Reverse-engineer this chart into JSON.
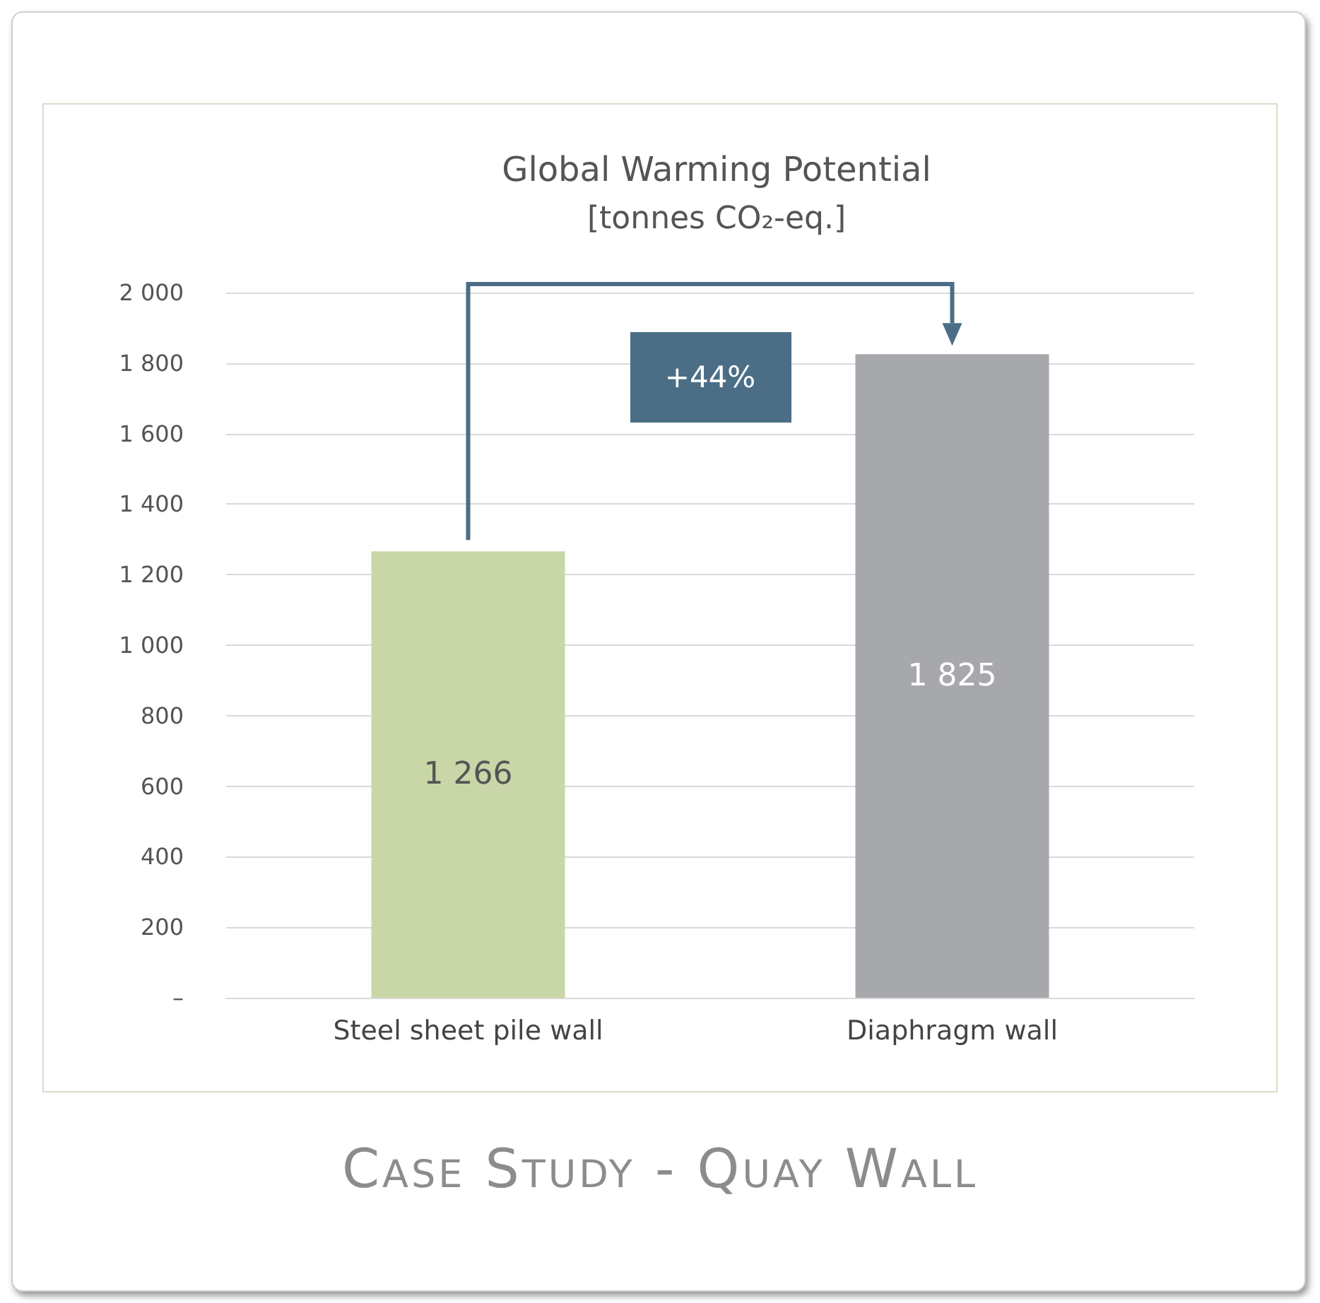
{
  "chart_data": {
    "type": "bar",
    "title": "Global Warming Potential",
    "subtitle": "[tonnes CO₂-eq.]",
    "categories": [
      "Steel sheet pile wall",
      "Diaphragm wall"
    ],
    "values": [
      1266,
      1825
    ],
    "colors": [
      "#c9d6a7",
      "#a7a8ab"
    ],
    "value_labels": [
      "1 266",
      "1 825"
    ],
    "ylim": [
      0,
      2000
    ],
    "yticks": [
      {
        "value": 0,
        "label": "–"
      },
      {
        "value": 200,
        "label": "200"
      },
      {
        "value": 400,
        "label": "400"
      },
      {
        "value": 600,
        "label": "600"
      },
      {
        "value": 800,
        "label": "800"
      },
      {
        "value": 1000,
        "label": "1 000"
      },
      {
        "value": 1200,
        "label": "1 200"
      },
      {
        "value": 1400,
        "label": "1 400"
      },
      {
        "value": 1600,
        "label": "1 600"
      },
      {
        "value": 1800,
        "label": "1 800"
      },
      {
        "value": 2000,
        "label": "2 000"
      }
    ],
    "grid": "y",
    "annotations": [
      "+44%",
      "Case Study - Quay Wall"
    ]
  }
}
